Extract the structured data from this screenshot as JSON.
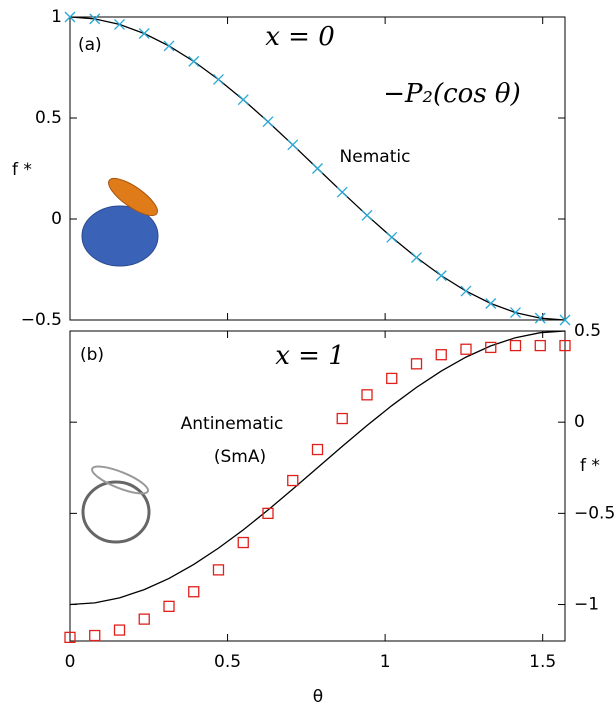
{
  "chart_data": [
    {
      "type": "line",
      "panel_label": "(a)",
      "title": "x = 0",
      "annotations": [
        "−P₂(cos θ)",
        "Nematic"
      ],
      "ylabel": "f *",
      "x": [
        0,
        0.0785,
        0.1571,
        0.2356,
        0.3142,
        0.3927,
        0.4712,
        0.5498,
        0.6283,
        0.7069,
        0.7854,
        0.8639,
        0.9425,
        1.021,
        1.0996,
        1.1781,
        1.2566,
        1.3352,
        1.4137,
        1.4923,
        1.5708
      ],
      "series": [
        {
          "color": "#000000",
          "line": true,
          "values": [
            1,
            0.9908,
            0.9633,
            0.9183,
            0.8568,
            0.7803,
            0.6908,
            0.5905,
            0.4818,
            0.3673,
            0.25,
            0.1327,
            0.0182,
            -0.0905,
            -0.1908,
            -0.2803,
            -0.3568,
            -0.4183,
            -0.4633,
            -0.4908,
            -0.5
          ]
        },
        {
          "color": "#29a8d6",
          "line": false,
          "marker": "x",
          "values": [
            1,
            0.9908,
            0.9633,
            0.9183,
            0.8568,
            0.7803,
            0.6908,
            0.5905,
            0.4818,
            0.3673,
            0.25,
            0.1327,
            0.0182,
            -0.0905,
            -0.1908,
            -0.2803,
            -0.3568,
            -0.4183,
            -0.4633,
            -0.4908,
            -0.5
          ]
        }
      ],
      "xlim": [
        0,
        1.5708
      ],
      "xticks": [
        0,
        0.5,
        1,
        1.5
      ],
      "xticklabels": false,
      "ylim": [
        -0.5,
        1
      ],
      "yticks": [
        {
          "value": -0.5,
          "label": "−0.5"
        },
        0,
        0.5,
        1
      ]
    },
    {
      "type": "line",
      "panel_label": "(b)",
      "title": "x = 1",
      "annotations": [
        "Antinematic",
        "(SmA)"
      ],
      "ylabel": "f *",
      "xlabel": "θ",
      "x": [
        0,
        0.0785,
        0.1571,
        0.2356,
        0.3142,
        0.3927,
        0.4712,
        0.5498,
        0.6283,
        0.7069,
        0.7854,
        0.8639,
        0.9425,
        1.021,
        1.0996,
        1.1781,
        1.2566,
        1.3352,
        1.4137,
        1.4923,
        1.5708
      ],
      "series": [
        {
          "color": "#000000",
          "line": true,
          "axis": "y2",
          "values": [
            -1,
            -0.9908,
            -0.9633,
            -0.9183,
            -0.8568,
            -0.7803,
            -0.6908,
            -0.5905,
            -0.4818,
            -0.3673,
            -0.25,
            -0.1327,
            -0.0182,
            0.0905,
            0.1908,
            0.2803,
            0.3568,
            0.4183,
            0.4633,
            0.4908,
            0.5
          ]
        },
        {
          "color": "#e0201b",
          "line": false,
          "marker": "square",
          "axis": "y2",
          "values": [
            -1.18,
            -1.17,
            -1.14,
            -1.08,
            -1.01,
            -0.93,
            -0.81,
            -0.66,
            -0.5,
            -0.32,
            -0.15,
            0.02,
            0.15,
            0.24,
            0.32,
            0.37,
            0.4,
            0.41,
            0.42,
            0.42,
            0.42
          ]
        }
      ],
      "xlim": [
        0,
        1.5708
      ],
      "xticks": [
        0,
        0.5,
        1,
        1.5
      ],
      "xticklabels": true,
      "y2lim": [
        -1.2,
        0.5
      ],
      "y2ticks": [
        {
          "value": -1,
          "label": "−1"
        },
        {
          "value": -0.5,
          "label": "−0.5"
        },
        0,
        0.5
      ]
    }
  ]
}
